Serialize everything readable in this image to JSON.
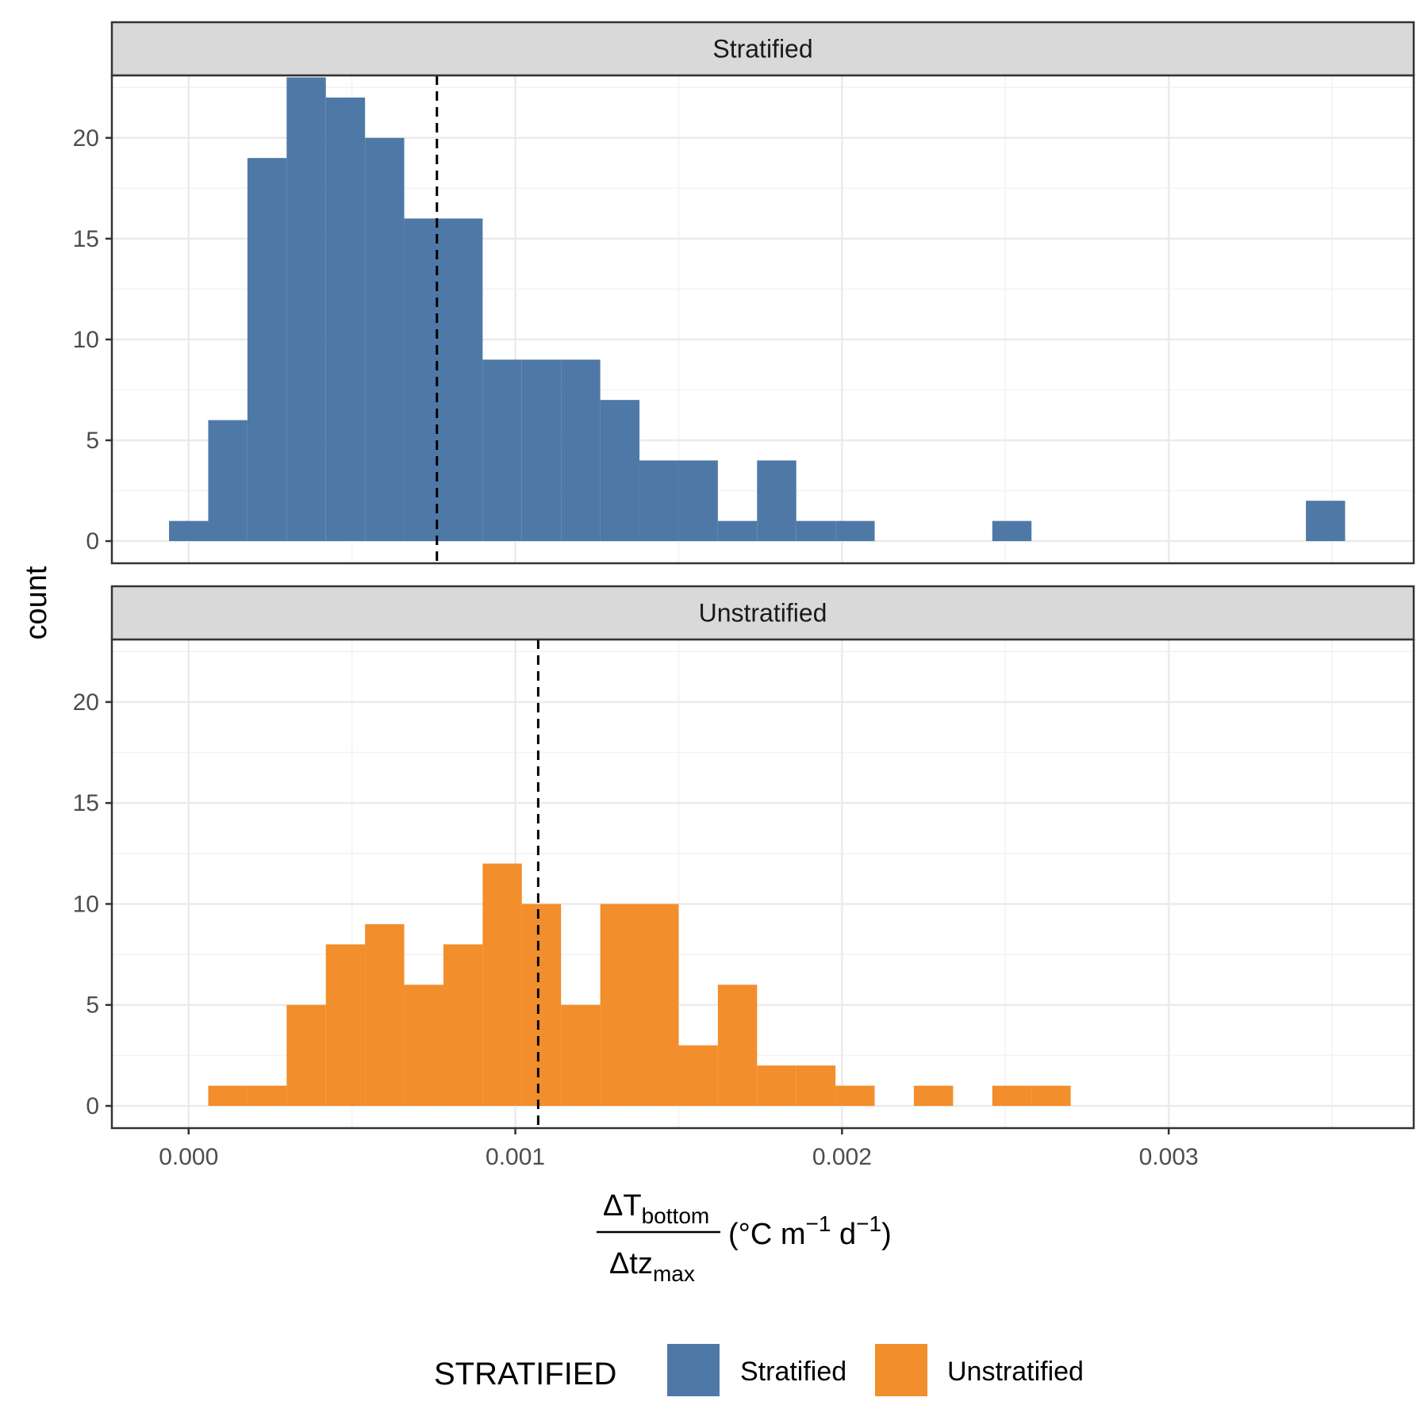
{
  "chart_data": {
    "type": "bar",
    "chart_kind": "faceted histogram",
    "ylabel": "count",
    "xlabel": {
      "numerator_delta": "ΔT",
      "numerator_sub": "bottom",
      "denominator_delta": "Δtz",
      "denominator_sub": "max",
      "units_open": "(°C m",
      "units_exp1": "−1",
      "units_mid": " d",
      "units_exp2": "−1",
      "units_close": ")"
    },
    "xlim": [
      -0.000235,
      0.00375
    ],
    "ylim": [
      -1.1,
      23.1
    ],
    "x_ticks": [
      {
        "value": 0.0,
        "label": "0.000"
      },
      {
        "value": 0.001,
        "label": "0.001"
      },
      {
        "value": 0.002,
        "label": "0.002"
      },
      {
        "value": 0.003,
        "label": "0.003"
      }
    ],
    "y_ticks": [
      {
        "value": 0,
        "label": "0"
      },
      {
        "value": 5,
        "label": "5"
      },
      {
        "value": 10,
        "label": "10"
      },
      {
        "value": 15,
        "label": "15"
      },
      {
        "value": 20,
        "label": "20"
      }
    ],
    "grid": true,
    "legend": {
      "title": "STRATIFIED",
      "position": "bottom",
      "entries": [
        {
          "label": "Stratified",
          "color": "#4E79A7"
        },
        {
          "label": "Unstratified",
          "color": "#F28E2B"
        }
      ]
    },
    "panels": [
      {
        "strip": "Stratified",
        "color": "#4E79A7",
        "mean_line": 0.00076,
        "bins": [
          {
            "x0": -6e-05,
            "x1": 6e-05,
            "count": 1
          },
          {
            "x0": 6e-05,
            "x1": 0.00018,
            "count": 6
          },
          {
            "x0": 0.00018,
            "x1": 0.0003,
            "count": 19
          },
          {
            "x0": 0.0003,
            "x1": 0.00042,
            "count": 23
          },
          {
            "x0": 0.00042,
            "x1": 0.00054,
            "count": 22
          },
          {
            "x0": 0.00054,
            "x1": 0.00066,
            "count": 20
          },
          {
            "x0": 0.00066,
            "x1": 0.00078,
            "count": 16
          },
          {
            "x0": 0.00078,
            "x1": 0.0009,
            "count": 16
          },
          {
            "x0": 0.0009,
            "x1": 0.00102,
            "count": 9
          },
          {
            "x0": 0.00102,
            "x1": 0.00114,
            "count": 9
          },
          {
            "x0": 0.00114,
            "x1": 0.00126,
            "count": 9
          },
          {
            "x0": 0.00126,
            "x1": 0.00138,
            "count": 7
          },
          {
            "x0": 0.00138,
            "x1": 0.0015,
            "count": 4
          },
          {
            "x0": 0.0015,
            "x1": 0.00162,
            "count": 4
          },
          {
            "x0": 0.00162,
            "x1": 0.00174,
            "count": 1
          },
          {
            "x0": 0.00174,
            "x1": 0.00186,
            "count": 4
          },
          {
            "x0": 0.00186,
            "x1": 0.00198,
            "count": 1
          },
          {
            "x0": 0.00198,
            "x1": 0.0021,
            "count": 1
          },
          {
            "x0": 0.00246,
            "x1": 0.00258,
            "count": 1
          },
          {
            "x0": 0.00342,
            "x1": 0.00354,
            "count": 2
          }
        ]
      },
      {
        "strip": "Unstratified",
        "color": "#F28E2B",
        "mean_line": 0.00107,
        "bins": [
          {
            "x0": 6e-05,
            "x1": 0.00018,
            "count": 1
          },
          {
            "x0": 0.00018,
            "x1": 0.0003,
            "count": 1
          },
          {
            "x0": 0.0003,
            "x1": 0.00042,
            "count": 5
          },
          {
            "x0": 0.00042,
            "x1": 0.00054,
            "count": 8
          },
          {
            "x0": 0.00054,
            "x1": 0.00066,
            "count": 9
          },
          {
            "x0": 0.00066,
            "x1": 0.00078,
            "count": 6
          },
          {
            "x0": 0.00078,
            "x1": 0.0009,
            "count": 8
          },
          {
            "x0": 0.0009,
            "x1": 0.00102,
            "count": 12
          },
          {
            "x0": 0.00102,
            "x1": 0.00114,
            "count": 10
          },
          {
            "x0": 0.00114,
            "x1": 0.00126,
            "count": 5
          },
          {
            "x0": 0.00126,
            "x1": 0.00138,
            "count": 10
          },
          {
            "x0": 0.00138,
            "x1": 0.0015,
            "count": 10
          },
          {
            "x0": 0.0015,
            "x1": 0.00162,
            "count": 3
          },
          {
            "x0": 0.00162,
            "x1": 0.00174,
            "count": 6
          },
          {
            "x0": 0.00174,
            "x1": 0.00186,
            "count": 2
          },
          {
            "x0": 0.00186,
            "x1": 0.00198,
            "count": 2
          },
          {
            "x0": 0.00198,
            "x1": 0.0021,
            "count": 1
          },
          {
            "x0": 0.00222,
            "x1": 0.00234,
            "count": 1
          },
          {
            "x0": 0.00246,
            "x1": 0.00258,
            "count": 1
          },
          {
            "x0": 0.00258,
            "x1": 0.0027,
            "count": 1
          }
        ]
      }
    ]
  }
}
